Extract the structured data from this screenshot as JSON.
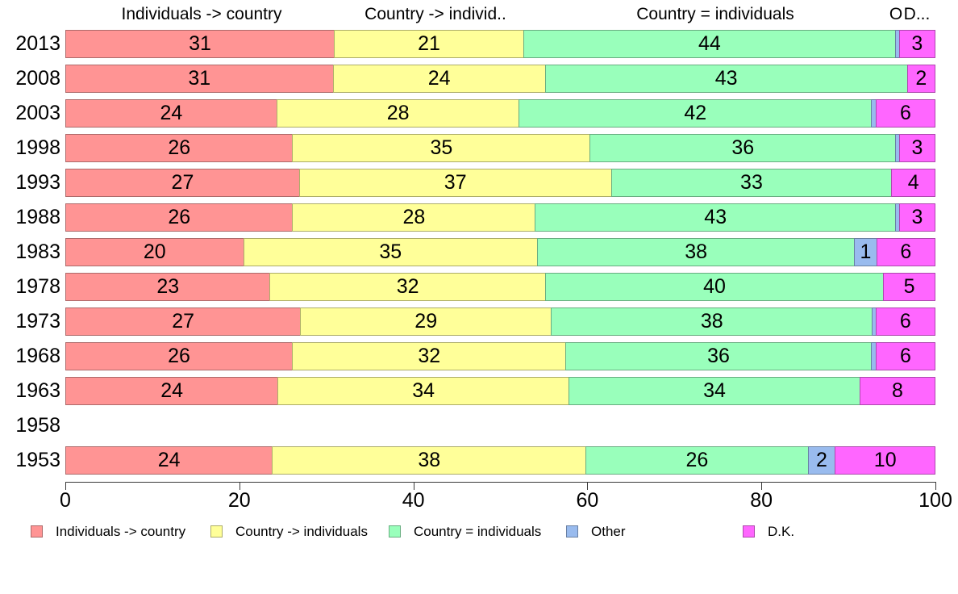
{
  "chart_data": {
    "type": "bar",
    "orientation": "horizontal",
    "stacked": true,
    "title": "",
    "xlabel": "",
    "ylabel": "",
    "x_axis": {
      "range": [
        0,
        100
      ],
      "ticks": [
        "0",
        "20",
        "40",
        "60",
        "80",
        "100"
      ],
      "grid": false
    },
    "legend_position": "bottom",
    "column_headers": [
      {
        "text": "Individuals -> country"
      },
      {
        "text": "Country -> individ.."
      },
      {
        "text": "Country = individuals"
      },
      {
        "text": "O"
      },
      {
        "text": "D..."
      }
    ],
    "series": [
      {
        "name": "Individuals -> country",
        "key": "individuals-to-country",
        "color": "#FF9494",
        "border": "#AD6A6A"
      },
      {
        "name": "Country -> individuals",
        "key": "country-to-individuals",
        "color": "#FFFF99",
        "border": "#ADAD69"
      },
      {
        "name": "Country = individuals",
        "key": "country-equals-individuals",
        "color": "#99FFBB",
        "border": "#69AD81"
      },
      {
        "name": "Other",
        "key": "other",
        "color": "#99BBEE",
        "border": "#6980A3"
      },
      {
        "name": "D.K.",
        "key": "dk",
        "color": "#FF66FF",
        "border": "#AD48AD"
      }
    ],
    "categories": [
      "2013",
      "2008",
      "2003",
      "1998",
      "1993",
      "1988",
      "1983",
      "1978",
      "1973",
      "1968",
      "1963",
      "1958",
      "1953"
    ],
    "rows": [
      {
        "year": "2013",
        "values": [
          31,
          21,
          44,
          null,
          3
        ],
        "draw": [
          31,
          21,
          44,
          0.4,
          3
        ]
      },
      {
        "year": "2008",
        "values": [
          31,
          24,
          43,
          null,
          2
        ],
        "draw": [
          31,
          24,
          43,
          0,
          2
        ]
      },
      {
        "year": "2003",
        "values": [
          24,
          28,
          42,
          null,
          6
        ],
        "draw": [
          24,
          28,
          42,
          0.5,
          6
        ]
      },
      {
        "year": "1998",
        "values": [
          26,
          35,
          36,
          null,
          3
        ],
        "draw": [
          26,
          35,
          36,
          0.4,
          3
        ]
      },
      {
        "year": "1993",
        "values": [
          27,
          37,
          33,
          null,
          4
        ],
        "draw": [
          27,
          37,
          33,
          0,
          4
        ]
      },
      {
        "year": "1988",
        "values": [
          26,
          28,
          43,
          null,
          3
        ],
        "draw": [
          26,
          28,
          43,
          0.4,
          3
        ]
      },
      {
        "year": "1983",
        "values": [
          20,
          35,
          38,
          1,
          6
        ],
        "draw": [
          20,
          35,
          38,
          1.3,
          6
        ]
      },
      {
        "year": "1978",
        "values": [
          23,
          32,
          40,
          null,
          5
        ],
        "draw": [
          23,
          32,
          40,
          0,
          5
        ]
      },
      {
        "year": "1973",
        "values": [
          27,
          29,
          38,
          null,
          6
        ],
        "draw": [
          27,
          29,
          38,
          0.35,
          6
        ]
      },
      {
        "year": "1968",
        "values": [
          26,
          32,
          36,
          null,
          6
        ],
        "draw": [
          26,
          32,
          36,
          0.55,
          6
        ]
      },
      {
        "year": "1963",
        "values": [
          24,
          34,
          34,
          null,
          8
        ],
        "draw": [
          24,
          34,
          34,
          0,
          8
        ]
      },
      {
        "year": "1958",
        "values": [
          null,
          null,
          null,
          null,
          null
        ],
        "draw": []
      },
      {
        "year": "1953",
        "values": [
          24,
          38,
          26,
          2,
          10
        ],
        "draw": [
          24,
          38,
          26,
          2,
          10
        ]
      }
    ]
  }
}
